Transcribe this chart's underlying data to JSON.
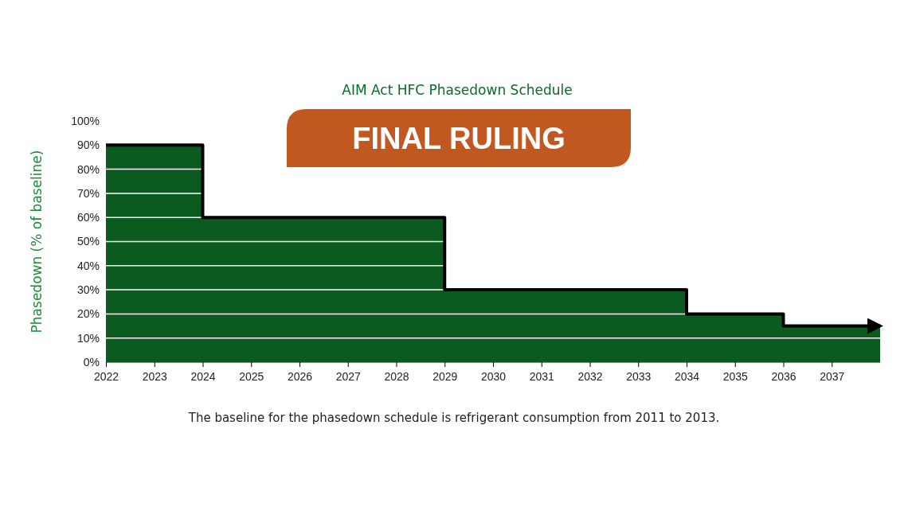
{
  "chart_data": {
    "type": "step",
    "title": "AIM Act HFC Phasedown Schedule",
    "subtitle": "FINAL RULING",
    "ylabel": "Phasedown (% of baseline)",
    "annotations": [
      "The baseline for the phasedown schedule is refrigerant consumption from 2011 to 2013."
    ],
    "xlim": [
      2022,
      2038
    ],
    "xticks": [
      2022,
      2023,
      2024,
      2025,
      2026,
      2027,
      2028,
      2029,
      2030,
      2031,
      2032,
      2033,
      2034,
      2035,
      2036,
      2037
    ],
    "ylim": [
      0,
      100
    ],
    "yticks": [
      {
        "value": 0,
        "label": "0%"
      },
      {
        "value": 10,
        "label": "10%"
      },
      {
        "value": 20,
        "label": "20%"
      },
      {
        "value": 30,
        "label": "30%"
      },
      {
        "value": 40,
        "label": "40%"
      },
      {
        "value": 50,
        "label": "50%"
      },
      {
        "value": 60,
        "label": "60%"
      },
      {
        "value": 70,
        "label": "70%"
      },
      {
        "value": 80,
        "label": "80%"
      },
      {
        "value": 90,
        "label": "90%"
      },
      {
        "value": 100,
        "label": "100%"
      }
    ],
    "grid": "y",
    "series": [
      {
        "type": "area",
        "color": "#0b5a1f",
        "x": [
          2022,
          2024,
          2029,
          2034,
          2036,
          2038
        ],
        "values": [
          90,
          60,
          30,
          20,
          15,
          15
        ]
      },
      {
        "type": "step",
        "color": "#000000",
        "x": [
          2022,
          2024,
          2029,
          2034,
          2036,
          2038
        ],
        "values": [
          90,
          60,
          30,
          20,
          15,
          15
        ]
      }
    ]
  }
}
